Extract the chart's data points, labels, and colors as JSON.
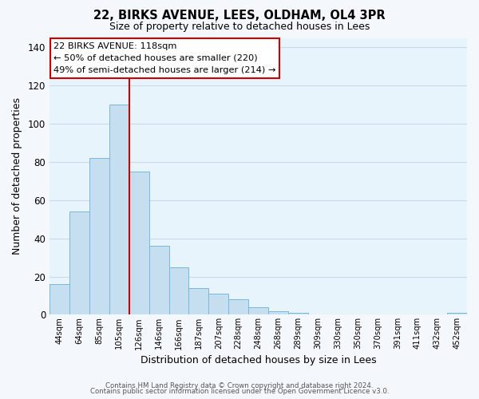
{
  "title1": "22, BIRKS AVENUE, LEES, OLDHAM, OL4 3PR",
  "title2": "Size of property relative to detached houses in Lees",
  "xlabel": "Distribution of detached houses by size in Lees",
  "ylabel": "Number of detached properties",
  "bar_labels": [
    "44sqm",
    "64sqm",
    "85sqm",
    "105sqm",
    "126sqm",
    "146sqm",
    "166sqm",
    "187sqm",
    "207sqm",
    "228sqm",
    "248sqm",
    "268sqm",
    "289sqm",
    "309sqm",
    "330sqm",
    "350sqm",
    "370sqm",
    "391sqm",
    "411sqm",
    "432sqm",
    "452sqm"
  ],
  "bar_values": [
    16,
    54,
    82,
    110,
    75,
    36,
    25,
    14,
    11,
    8,
    4,
    2,
    1,
    0,
    0,
    0,
    0,
    0,
    0,
    0,
    1
  ],
  "bar_color": "#c5dff0",
  "bar_edge_color": "#7ab8d8",
  "red_line_color": "#cc0000",
  "ylim": [
    0,
    145
  ],
  "yticks": [
    0,
    20,
    40,
    60,
    80,
    100,
    120,
    140
  ],
  "annotation_title": "22 BIRKS AVENUE: 118sqm",
  "annotation_line1": "← 50% of detached houses are smaller (220)",
  "annotation_line2": "49% of semi-detached houses are larger (214) →",
  "footer1": "Contains HM Land Registry data © Crown copyright and database right 2024.",
  "footer2": "Contains public sector information licensed under the Open Government Licence v3.0.",
  "grid_color": "#c8dce8",
  "bg_color": "#e8f4fb",
  "fig_bg_color": "#f4f8fc"
}
